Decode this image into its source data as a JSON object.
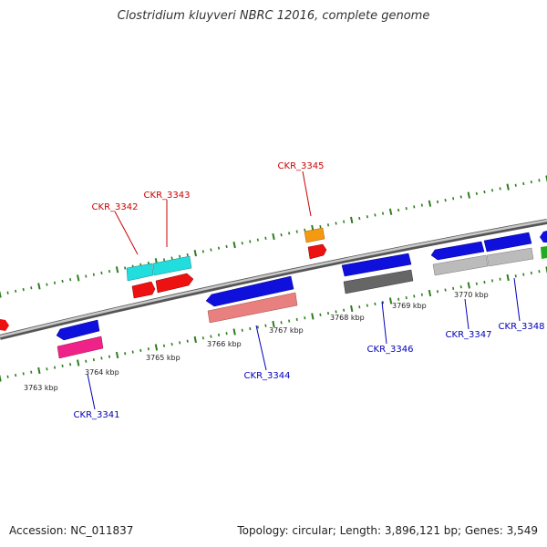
{
  "header": {
    "title": "Clostridium kluyveri NBRC 12016, complete genome"
  },
  "footer": {
    "accession": "Accession: NC_011837",
    "summary": "Topology: circular; Length: 3,896,121 bp; Genes: 3,549"
  },
  "colors": {
    "backbone": "#8a8a8a",
    "tick": "#2e7d1e",
    "label_top": "#cc0000",
    "label_bottom": "#0000bb",
    "blue": "#1010dd",
    "red": "#ee1111",
    "cyan": "#22dddd",
    "orange": "#f39a10",
    "magenta": "#ee2288",
    "salmon": "#e98080",
    "darkgray": "#666666",
    "lightgray": "#bbbbbb",
    "green": "#22aa22"
  },
  "scale": {
    "unit": "kbp",
    "labels": [
      {
        "value": 3763,
        "text": "3763 kbp"
      },
      {
        "value": 3764,
        "text": "3764 kbp"
      },
      {
        "value": 3765,
        "text": "3765 kbp"
      },
      {
        "value": 3766,
        "text": "3766 kbp"
      },
      {
        "value": 3767,
        "text": "3767 kbp"
      },
      {
        "value": 3768,
        "text": "3768 kbp"
      },
      {
        "value": 3769,
        "text": "3769 kbp"
      },
      {
        "value": 3770,
        "text": "3770 kbp"
      }
    ]
  },
  "genes": {
    "top_labels": [
      "CKR_3342",
      "CKR_3343",
      "CKR_3345"
    ],
    "bottom_labels": [
      "CKR_3341",
      "CKR_3344",
      "CKR_3346",
      "CKR_3347",
      "CKR_3348"
    ]
  }
}
